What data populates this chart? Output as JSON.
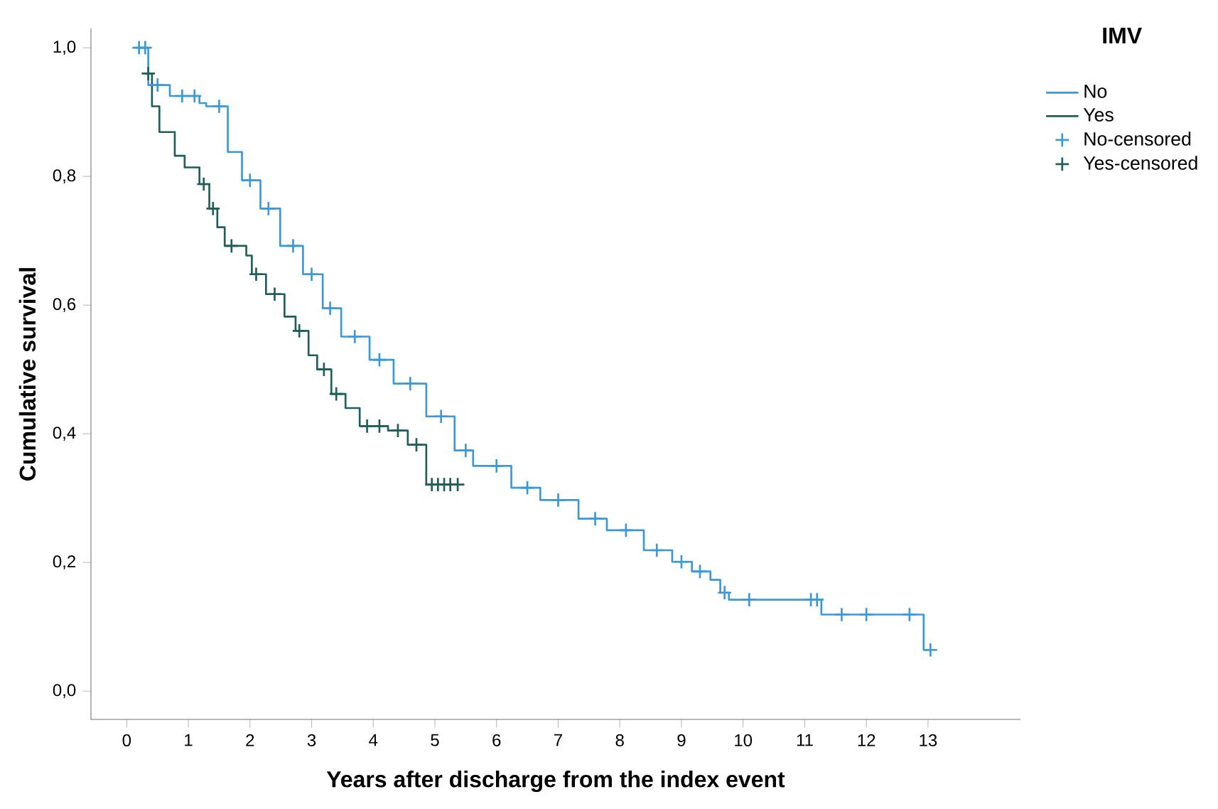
{
  "chart_data": {
    "type": "step",
    "xlabel": "Years after discharge from the index event",
    "ylabel": "Cumulative survival",
    "legend_title": "IMV",
    "legend": "top right",
    "xlim": [
      -0.58,
      14.5
    ],
    "ylim": [
      -0.044,
      1.03
    ],
    "xticks": [
      0,
      1,
      2,
      3,
      4,
      5,
      6,
      7,
      8,
      9,
      10,
      11,
      12,
      13
    ],
    "yticks": [
      {
        "value": 0.0,
        "label": "0,0"
      },
      {
        "value": 0.2,
        "label": "0,2"
      },
      {
        "value": 0.4,
        "label": "0,4"
      },
      {
        "value": 0.6,
        "label": "0,6"
      },
      {
        "value": 0.8,
        "label": "0,8"
      },
      {
        "value": 1.0,
        "label": "1,0"
      }
    ],
    "series": [
      {
        "name": "No",
        "color": "#3a9ad9",
        "x": [
          0.15,
          0.35,
          0.7,
          1.18,
          1.29,
          1.64,
          1.87,
          2.17,
          2.49,
          2.86,
          3.18,
          3.48,
          3.94,
          4.33,
          4.86,
          5.32,
          5.62,
          6.24,
          6.71,
          7.33,
          7.79,
          8.39,
          8.85,
          9.17,
          9.47,
          9.63,
          9.77,
          11.27,
          12.93,
          13.04
        ],
        "values": [
          1.0,
          0.942,
          0.925,
          0.914,
          0.909,
          0.838,
          0.794,
          0.75,
          0.692,
          0.648,
          0.595,
          0.551,
          0.515,
          0.478,
          0.427,
          0.374,
          0.35,
          0.316,
          0.297,
          0.268,
          0.25,
          0.219,
          0.201,
          0.186,
          0.173,
          0.153,
          0.142,
          0.119,
          0.064,
          0.064
        ]
      },
      {
        "name": "Yes",
        "color": "#1f5f5b",
        "x": [
          0.3,
          0.41,
          0.53,
          0.78,
          0.94,
          1.18,
          1.34,
          1.47,
          1.59,
          1.94,
          2.03,
          2.26,
          2.56,
          2.74,
          2.95,
          3.09,
          3.32,
          3.55,
          3.78,
          4.24,
          4.56,
          4.86,
          5.37
        ],
        "values": [
          0.96,
          0.909,
          0.869,
          0.832,
          0.814,
          0.788,
          0.75,
          0.721,
          0.692,
          0.677,
          0.648,
          0.617,
          0.582,
          0.56,
          0.522,
          0.5,
          0.462,
          0.44,
          0.412,
          0.405,
          0.383,
          0.321,
          0.321
        ]
      },
      {
        "name": "No-censored",
        "type": "scatter",
        "marker": "cross",
        "color": "#3a9ad9",
        "x": [
          0.2,
          0.3,
          0.5,
          0.9,
          1.1,
          1.5,
          2.0,
          2.3,
          2.7,
          3.0,
          3.3,
          3.7,
          4.1,
          4.6,
          5.1,
          5.5,
          6.0,
          6.5,
          7.0,
          7.6,
          8.1,
          8.6,
          9.0,
          9.3,
          9.7,
          10.1,
          11.1,
          11.2,
          11.6,
          12.0,
          12.7,
          13.04
        ],
        "values": [
          1.0,
          1.0,
          0.942,
          0.925,
          0.925,
          0.909,
          0.794,
          0.75,
          0.692,
          0.648,
          0.595,
          0.551,
          0.515,
          0.478,
          0.427,
          0.374,
          0.35,
          0.316,
          0.297,
          0.268,
          0.25,
          0.219,
          0.201,
          0.186,
          0.153,
          0.142,
          0.142,
          0.142,
          0.119,
          0.119,
          0.119,
          0.064
        ]
      },
      {
        "name": "Yes-censored",
        "type": "scatter",
        "marker": "cross",
        "color": "#1f5f5b",
        "x": [
          0.35,
          1.25,
          1.4,
          1.7,
          2.1,
          2.4,
          2.8,
          3.2,
          3.4,
          3.9,
          4.1,
          4.4,
          4.7,
          4.95,
          5.05,
          5.15,
          5.25,
          5.37
        ],
        "values": [
          0.96,
          0.788,
          0.75,
          0.692,
          0.648,
          0.617,
          0.56,
          0.5,
          0.462,
          0.412,
          0.412,
          0.405,
          0.383,
          0.321,
          0.321,
          0.321,
          0.321,
          0.321
        ]
      }
    ]
  }
}
